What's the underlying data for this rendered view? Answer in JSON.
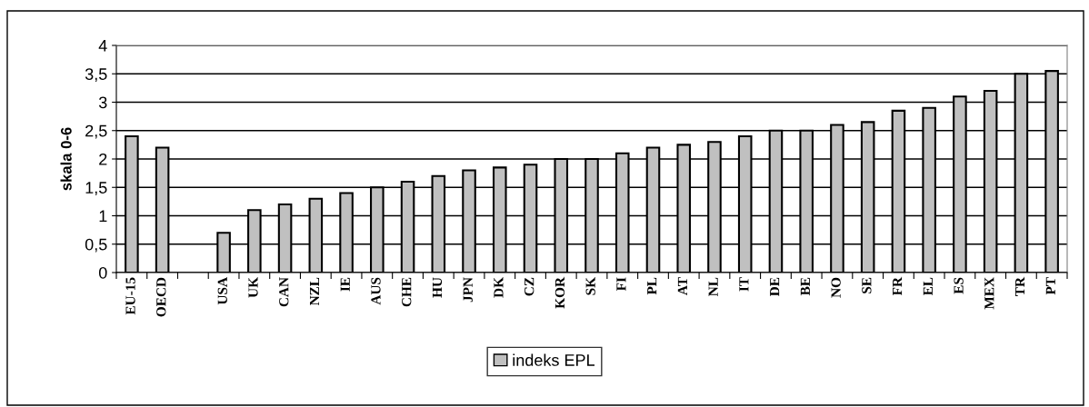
{
  "chart_data": {
    "type": "bar",
    "categories": [
      "EU-15",
      "OECD",
      null,
      "USA",
      "UK",
      "CAN",
      "NZL",
      "IE",
      "AUS",
      "CHE",
      "HU",
      "JPN",
      "DK",
      "CZ",
      "KOR",
      "SK",
      "FI",
      "PL",
      "AT",
      "NL",
      "IT",
      "DE",
      "BE",
      "NO",
      "SE",
      "FR",
      "EL",
      "ES",
      "MEX",
      "TR",
      "PT"
    ],
    "series": [
      {
        "name": "indeks EPL",
        "color": "#c0c0c0",
        "values": [
          2.4,
          2.2,
          null,
          0.7,
          1.1,
          1.2,
          1.3,
          1.4,
          1.5,
          1.6,
          1.7,
          1.8,
          1.85,
          1.9,
          2.0,
          2.0,
          2.1,
          2.2,
          2.25,
          2.3,
          2.4,
          2.5,
          2.5,
          2.6,
          2.65,
          2.85,
          2.9,
          3.1,
          3.2,
          3.5,
          3.55
        ]
      }
    ],
    "ylabel": "skala 0-6",
    "ylim": [
      0,
      4
    ],
    "yticks": [
      0,
      {
        "value": 0.5,
        "label": "0,5"
      },
      1,
      {
        "value": 1.5,
        "label": "1,5"
      },
      2,
      {
        "value": 2.5,
        "label": "2,5"
      },
      3,
      {
        "value": 3.5,
        "label": "3,5"
      },
      4
    ],
    "grid": "y",
    "legend": "bottom"
  }
}
